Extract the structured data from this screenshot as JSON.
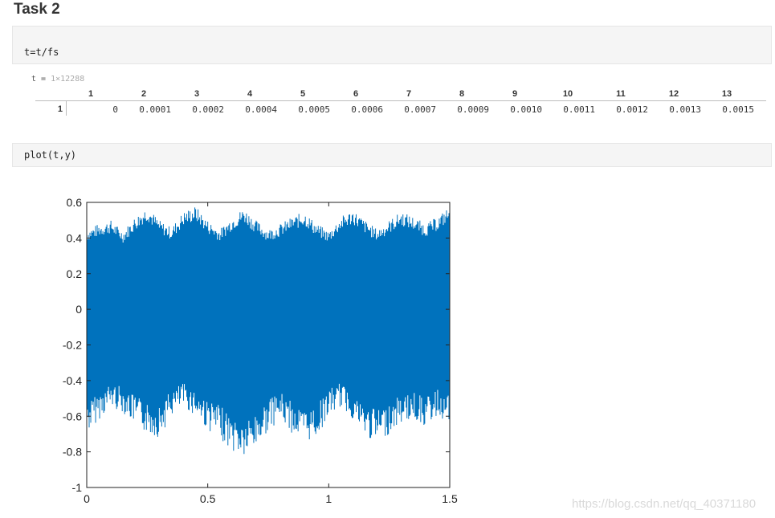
{
  "title": "Task 2",
  "code_cells": [
    "t=t/fs",
    "plot(t,y)"
  ],
  "variable": {
    "name_eq": "t = ",
    "dims": "1×12288",
    "columns": [
      "1",
      "2",
      "3",
      "4",
      "5",
      "6",
      "7",
      "8",
      "9",
      "10",
      "11",
      "12",
      "13"
    ],
    "row": "1",
    "values": [
      "0",
      "0.0001",
      "0.0002",
      "0.0004",
      "0.0005",
      "0.0006",
      "0.0007",
      "0.0009",
      "0.0010",
      "0.0011",
      "0.0012",
      "0.0013",
      "0.0015"
    ]
  },
  "chart_data": {
    "type": "line",
    "title": "",
    "xlabel": "",
    "ylabel": "",
    "xlim": [
      0,
      1.5
    ],
    "ylim": [
      -1,
      0.6
    ],
    "xticks": [
      "0",
      "0.5",
      "1",
      "1.5"
    ],
    "yticks": [
      "0.6",
      "0.4",
      "0.2",
      "0",
      "-0.2",
      "-0.4",
      "-0.6",
      "-0.8",
      "-1"
    ],
    "series_color": "#0072bd",
    "grid": false,
    "series": [
      {
        "values_note_free": true,
        "x": [
          0,
          0.05,
          0.1,
          0.15,
          0.2,
          0.25,
          0.3,
          0.35,
          0.4,
          0.45,
          0.5,
          0.55,
          0.6,
          0.65,
          0.7,
          0.75,
          0.8,
          0.85,
          0.9,
          0.95,
          1.0,
          1.05,
          1.1,
          1.15,
          1.2,
          1.25,
          1.3,
          1.35,
          1.4,
          1.45,
          1.5
        ],
        "upper": [
          0.45,
          0.48,
          0.5,
          0.44,
          0.52,
          0.58,
          0.5,
          0.46,
          0.55,
          0.58,
          0.5,
          0.45,
          0.52,
          0.57,
          0.5,
          0.45,
          0.48,
          0.52,
          0.55,
          0.48,
          0.44,
          0.52,
          0.56,
          0.5,
          0.45,
          0.5,
          0.55,
          0.52,
          0.48,
          0.52,
          0.58
        ],
        "lower": [
          -0.7,
          -0.62,
          -0.55,
          -0.58,
          -0.65,
          -0.7,
          -0.72,
          -0.6,
          -0.55,
          -0.6,
          -0.68,
          -0.72,
          -0.8,
          -0.84,
          -0.78,
          -0.68,
          -0.62,
          -0.7,
          -0.75,
          -0.72,
          -0.6,
          -0.55,
          -0.62,
          -0.72,
          -0.75,
          -0.7,
          -0.64,
          -0.62,
          -0.66,
          -0.6,
          -0.65
        ]
      }
    ]
  },
  "watermark": "https://blog.csdn.net/qq_40371180"
}
